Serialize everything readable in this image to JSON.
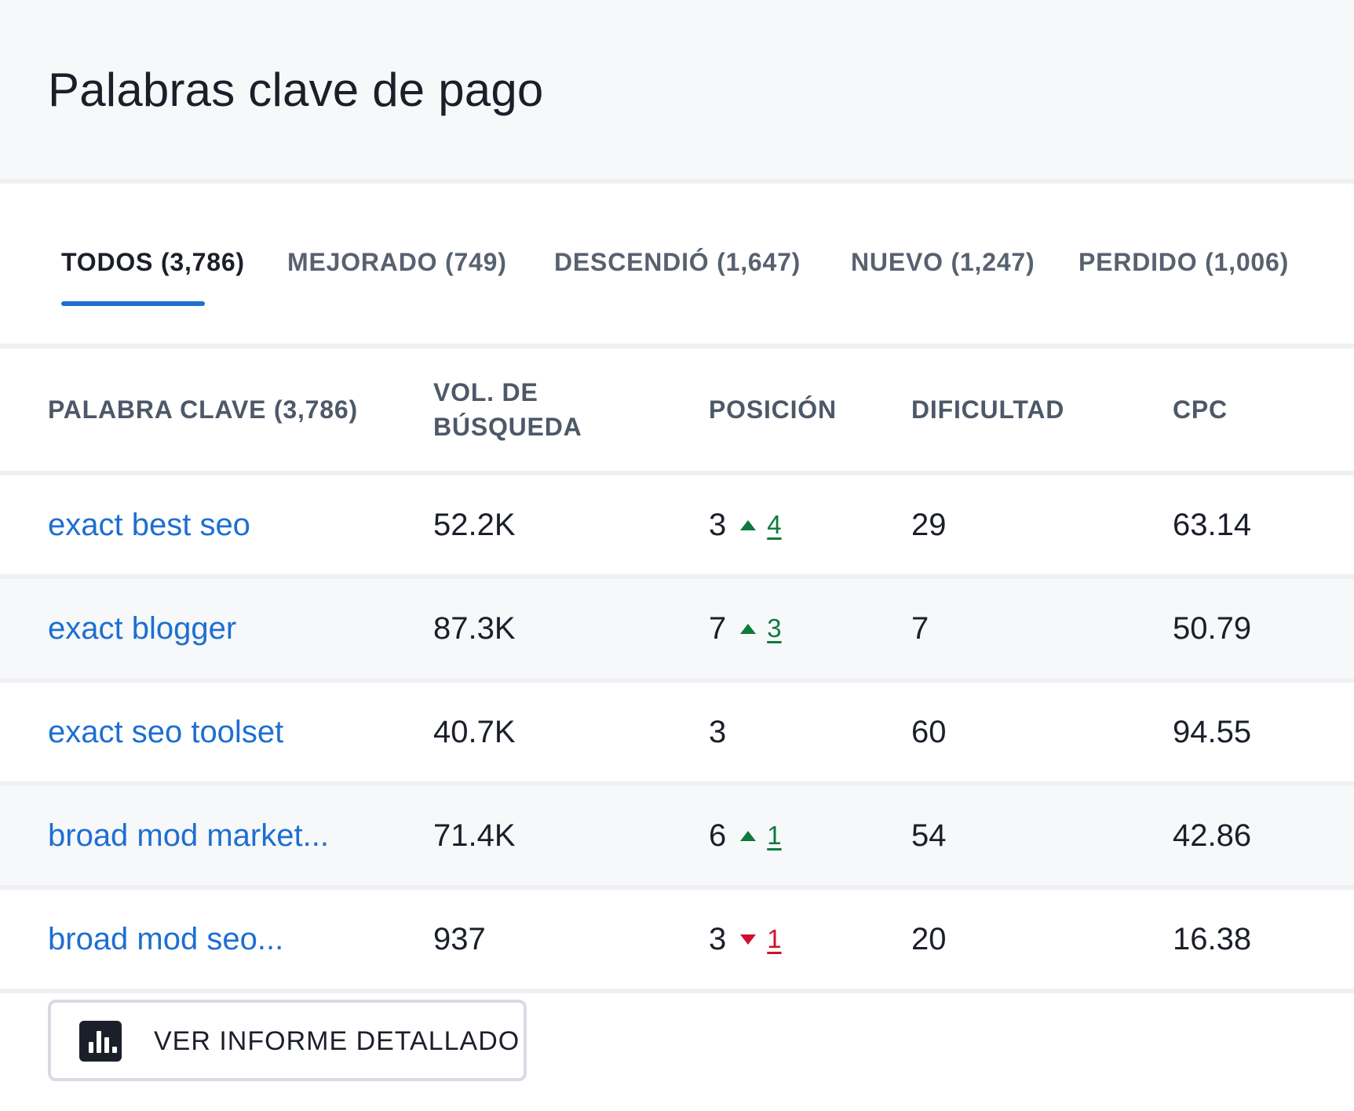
{
  "header": {
    "title": "Palabras clave de pago"
  },
  "tabs": [
    {
      "label": "TODOS (3,786)",
      "active": true
    },
    {
      "label": "MEJORADO (749)",
      "active": false
    },
    {
      "label": "DESCENDIÓ (1,647)",
      "active": false
    },
    {
      "label": "NUEVO (1,247)",
      "active": false
    },
    {
      "label": "PERDIDO  (1,006)",
      "active": false
    }
  ],
  "table": {
    "headers": {
      "keyword": "PALABRA CLAVE  (3,786)",
      "volume_line1": "VOL. DE",
      "volume_line2": "BÚSQUEDA",
      "position": "POSICIÓN",
      "difficulty": "DIFICULTAD",
      "cpc": "CPC"
    },
    "rows": [
      {
        "keyword": "exact best seo",
        "volume": "52.2K",
        "position": "3",
        "delta": "4",
        "trend": "up",
        "difficulty": "29",
        "cpc": "63.14"
      },
      {
        "keyword": "exact blogger",
        "volume": "87.3K",
        "position": "7",
        "delta": "3",
        "trend": "up",
        "difficulty": "7",
        "cpc": "50.79"
      },
      {
        "keyword": "exact seo toolset",
        "volume": "40.7K",
        "position": "3",
        "delta": "",
        "trend": "none",
        "difficulty": "60",
        "cpc": "94.55"
      },
      {
        "keyword": "broad mod market...",
        "volume": "71.4K",
        "position": "6",
        "delta": "1",
        "trend": "up",
        "difficulty": "54",
        "cpc": "42.86"
      },
      {
        "keyword": "broad mod seo...",
        "volume": "937",
        "position": "3",
        "delta": "1",
        "trend": "down",
        "difficulty": "20",
        "cpc": "16.38"
      }
    ]
  },
  "colors": {
    "accent": "#1d6fd1",
    "up": "#0e7a3e",
    "down": "#d2102c"
  },
  "icons": {
    "report_button": "bar-chart-icon",
    "trend_up": "triangle-up-icon",
    "trend_down": "triangle-down-icon"
  },
  "report_button": {
    "label": "VER INFORME DETALLADO"
  }
}
